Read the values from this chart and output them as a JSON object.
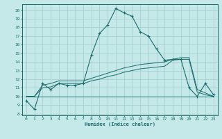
{
  "bg_color": "#c5e8e8",
  "grid_color": "#a0cccc",
  "line_color": "#1a6b6b",
  "xlabel": "Humidex (Indice chaleur)",
  "xlim": [
    -0.5,
    23.5
  ],
  "ylim": [
    7.8,
    20.7
  ],
  "xticks": [
    0,
    1,
    2,
    3,
    4,
    5,
    6,
    7,
    8,
    9,
    10,
    11,
    12,
    13,
    14,
    15,
    16,
    17,
    18,
    19,
    20,
    21,
    22,
    23
  ],
  "yticks": [
    8,
    9,
    10,
    11,
    12,
    13,
    14,
    15,
    16,
    17,
    18,
    19,
    20
  ],
  "main_y": [
    9.5,
    8.5,
    11.5,
    10.8,
    11.5,
    11.3,
    11.3,
    11.5,
    14.8,
    17.3,
    18.3,
    20.2,
    19.7,
    19.3,
    17.5,
    17.0,
    15.5,
    14.2,
    14.3,
    14.3,
    11.0,
    10.0,
    11.5,
    10.2
  ],
  "flat_y": [
    10.0,
    10.0,
    10.0,
    10.0,
    10.0,
    10.0,
    10.0,
    10.0,
    10.0,
    10.0,
    10.0,
    10.0,
    10.0,
    10.0,
    10.0,
    10.0,
    10.0,
    10.0,
    10.0,
    10.0,
    10.0,
    10.0,
    10.0,
    10.0
  ],
  "band1_y": [
    10.0,
    10.0,
    11.0,
    11.1,
    11.5,
    11.5,
    11.5,
    11.5,
    11.8,
    12.0,
    12.3,
    12.5,
    12.8,
    13.0,
    13.2,
    13.3,
    13.4,
    13.5,
    14.2,
    14.3,
    14.3,
    10.5,
    10.2,
    10.0
  ],
  "band2_y": [
    10.0,
    10.0,
    11.3,
    11.5,
    11.8,
    11.8,
    11.8,
    11.8,
    12.1,
    12.4,
    12.7,
    13.0,
    13.3,
    13.5,
    13.7,
    13.8,
    13.9,
    14.0,
    14.3,
    14.5,
    14.5,
    10.8,
    10.4,
    10.0
  ]
}
